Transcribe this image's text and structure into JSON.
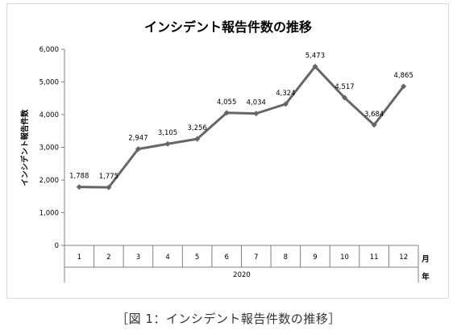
{
  "chart_data": {
    "type": "line",
    "title": "インシデント報告件数の推移",
    "ylabel": "インシデント報告件数",
    "xlabel_month": "月",
    "xlabel_year": "年",
    "year_label": "2020",
    "categories": [
      "1",
      "2",
      "3",
      "4",
      "5",
      "6",
      "7",
      "8",
      "9",
      "10",
      "11",
      "12"
    ],
    "values": [
      1788,
      1775,
      2947,
      3105,
      3256,
      4055,
      4034,
      4324,
      5473,
      4517,
      3684,
      4865
    ],
    "data_labels": [
      "1,788",
      "1,775",
      "2,947",
      "3,105",
      "3,256",
      "4,055",
      "4,034",
      "4,324",
      "5,473",
      "4,517",
      "3,684",
      "4,865"
    ],
    "ylim": [
      0,
      6000
    ],
    "yticks": [
      0,
      1000,
      2000,
      3000,
      4000,
      5000,
      6000
    ],
    "ytick_labels": [
      "0",
      "1,000",
      "2,000",
      "3,000",
      "4,000",
      "5,000",
      "6,000"
    ],
    "grid": false,
    "legend": "none",
    "line_color": "#666666",
    "marker": "diamond"
  },
  "caption": "［図 1：インシデント報告件数の推移］"
}
